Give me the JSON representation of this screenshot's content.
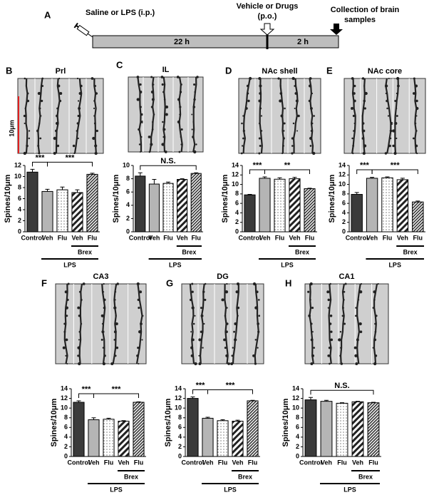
{
  "timeline": {
    "label": "A",
    "start": "Saline or LPS (i.p.)",
    "middle": [
      "Vehicle or Drugs",
      "(p.o.)"
    ],
    "end": [
      "Collection of brain",
      "samples"
    ],
    "first_interval": "22 h",
    "second_interval": "2 h"
  },
  "chart_data": [
    {
      "type": "bar",
      "panel": "B",
      "title": "Prl",
      "scale_bar": "10μm",
      "ylabel": "Spines/10μm",
      "categories": [
        "Control",
        "Veh",
        "Flu",
        "Veh",
        "Flu"
      ],
      "values": [
        10.8,
        7.3,
        7.6,
        7.1,
        10.4
      ],
      "errors": [
        0.5,
        0.4,
        0.5,
        0.5,
        0.2
      ],
      "fills": [
        "dark",
        "gray",
        "dots",
        "stripes",
        "hatch"
      ],
      "ylim": [
        0,
        12
      ],
      "yticks": [
        0,
        2,
        4,
        6,
        8,
        10,
        12
      ],
      "groups": [
        {
          "label": "Brex",
          "span": [
            3,
            4
          ]
        },
        {
          "label": "LPS",
          "span": [
            1,
            4
          ]
        }
      ],
      "comparisons": [
        {
          "label": "***",
          "between": [
            0,
            1
          ]
        },
        {
          "label": "***",
          "between": [
            1,
            4
          ]
        }
      ]
    },
    {
      "type": "bar",
      "panel": "C",
      "title": "IL",
      "ylabel": "Spines/10μm",
      "categories": [
        "Control",
        "Veh",
        "Flu",
        "Veh",
        "Flu"
      ],
      "values": [
        8.4,
        7.2,
        7.3,
        7.9,
        8.8
      ],
      "errors": [
        0.5,
        0.7,
        0.2,
        0.1,
        0.1
      ],
      "fills": [
        "dark",
        "gray",
        "dots",
        "stripes",
        "hatch"
      ],
      "ylim": [
        0,
        10
      ],
      "yticks": [
        0,
        2,
        4,
        6,
        8,
        10
      ],
      "groups": [
        {
          "label": "Brex",
          "span": [
            3,
            4
          ]
        },
        {
          "label": "LPS",
          "span": [
            1,
            4
          ]
        }
      ],
      "comparisons": [
        {
          "label": "N.S.",
          "between": [
            0,
            4
          ]
        }
      ]
    },
    {
      "type": "bar",
      "panel": "D",
      "title": "NAc shell",
      "ylabel": "Spines/10μm",
      "categories": [
        "Control",
        "Veh",
        "Flu",
        "Veh",
        "Flu"
      ],
      "values": [
        7.8,
        11.3,
        11.1,
        11.2,
        9.1
      ],
      "errors": [
        0.1,
        0.3,
        0.3,
        0.3,
        0.1
      ],
      "fills": [
        "dark",
        "gray",
        "dots",
        "stripes",
        "hatch"
      ],
      "ylim": [
        0,
        14
      ],
      "yticks": [
        0,
        2,
        4,
        6,
        8,
        10,
        12,
        14
      ],
      "groups": [
        {
          "label": "Brex",
          "span": [
            3,
            4
          ]
        },
        {
          "label": "LPS",
          "span": [
            1,
            4
          ]
        }
      ],
      "comparisons": [
        {
          "label": "***",
          "between": [
            0,
            1
          ]
        },
        {
          "label": "**",
          "between": [
            1,
            4
          ]
        }
      ]
    },
    {
      "type": "bar",
      "panel": "E",
      "title": "NAc core",
      "ylabel": "Spines/10μm",
      "categories": [
        "Control",
        "Veh",
        "Flu",
        "Veh",
        "Flu"
      ],
      "values": [
        7.9,
        11.3,
        11.4,
        11.0,
        6.3
      ],
      "errors": [
        0.4,
        0.2,
        0.2,
        0.3,
        0.2
      ],
      "fills": [
        "dark",
        "gray",
        "dots",
        "stripes",
        "hatch"
      ],
      "ylim": [
        0,
        14
      ],
      "yticks": [
        0,
        2,
        4,
        6,
        8,
        10,
        12,
        14
      ],
      "groups": [
        {
          "label": "Brex",
          "span": [
            3,
            4
          ]
        },
        {
          "label": "LPS",
          "span": [
            1,
            4
          ]
        }
      ],
      "comparisons": [
        {
          "label": "***",
          "between": [
            0,
            1
          ]
        },
        {
          "label": "***",
          "between": [
            1,
            4
          ]
        }
      ]
    },
    {
      "type": "bar",
      "panel": "F",
      "title": "CA3",
      "ylabel": "Spines/10μm",
      "categories": [
        "Control",
        "Veh",
        "Flu",
        "Veh",
        "Flu"
      ],
      "values": [
        11.2,
        7.6,
        7.7,
        7.3,
        11.2
      ],
      "errors": [
        0.3,
        0.4,
        0.2,
        0.1,
        0.1
      ],
      "fills": [
        "dark",
        "gray",
        "dots",
        "stripes",
        "hatch"
      ],
      "ylim": [
        0,
        14
      ],
      "yticks": [
        0,
        2,
        4,
        6,
        8,
        10,
        12,
        14
      ],
      "groups": [
        {
          "label": "Brex",
          "span": [
            3,
            4
          ]
        },
        {
          "label": "LPS",
          "span": [
            1,
            4
          ]
        }
      ],
      "comparisons": [
        {
          "label": "***",
          "between": [
            0,
            1
          ]
        },
        {
          "label": "***",
          "between": [
            1,
            4
          ]
        }
      ]
    },
    {
      "type": "bar",
      "panel": "G",
      "title": "DG",
      "ylabel": "Spines/10μm",
      "categories": [
        "Control",
        "Veh",
        "Flu",
        "Veh",
        "Flu"
      ],
      "values": [
        12.0,
        7.9,
        7.4,
        7.3,
        11.5
      ],
      "errors": [
        0.3,
        0.2,
        0.2,
        0.2,
        0.1
      ],
      "fills": [
        "dark",
        "gray",
        "dots",
        "stripes",
        "hatch"
      ],
      "ylim": [
        0,
        14
      ],
      "yticks": [
        0,
        2,
        4,
        6,
        8,
        10,
        12,
        14
      ],
      "groups": [
        {
          "label": "Brex",
          "span": [
            3,
            4
          ]
        },
        {
          "label": "LPS",
          "span": [
            1,
            4
          ]
        }
      ],
      "comparisons": [
        {
          "label": "***",
          "between": [
            0,
            1
          ]
        },
        {
          "label": "***",
          "between": [
            1,
            4
          ]
        }
      ]
    },
    {
      "type": "bar",
      "panel": "H",
      "title": "CA1",
      "ylabel": "Spines/10μm",
      "categories": [
        "Control",
        "Veh",
        "Flu",
        "Veh",
        "Flu"
      ],
      "values": [
        11.7,
        11.4,
        11.0,
        11.3,
        11.1
      ],
      "errors": [
        0.5,
        0.2,
        0.1,
        0.1,
        0.1
      ],
      "fills": [
        "dark",
        "gray",
        "dots",
        "stripes",
        "hatch"
      ],
      "ylim": [
        0,
        14
      ],
      "yticks": [
        0,
        2,
        4,
        6,
        8,
        10,
        12,
        14
      ],
      "groups": [
        {
          "label": "Brex",
          "span": [
            3,
            4
          ]
        },
        {
          "label": "LPS",
          "span": [
            1,
            4
          ]
        }
      ],
      "comparisons": [
        {
          "label": "N.S.",
          "between": [
            0,
            4
          ]
        }
      ]
    }
  ]
}
